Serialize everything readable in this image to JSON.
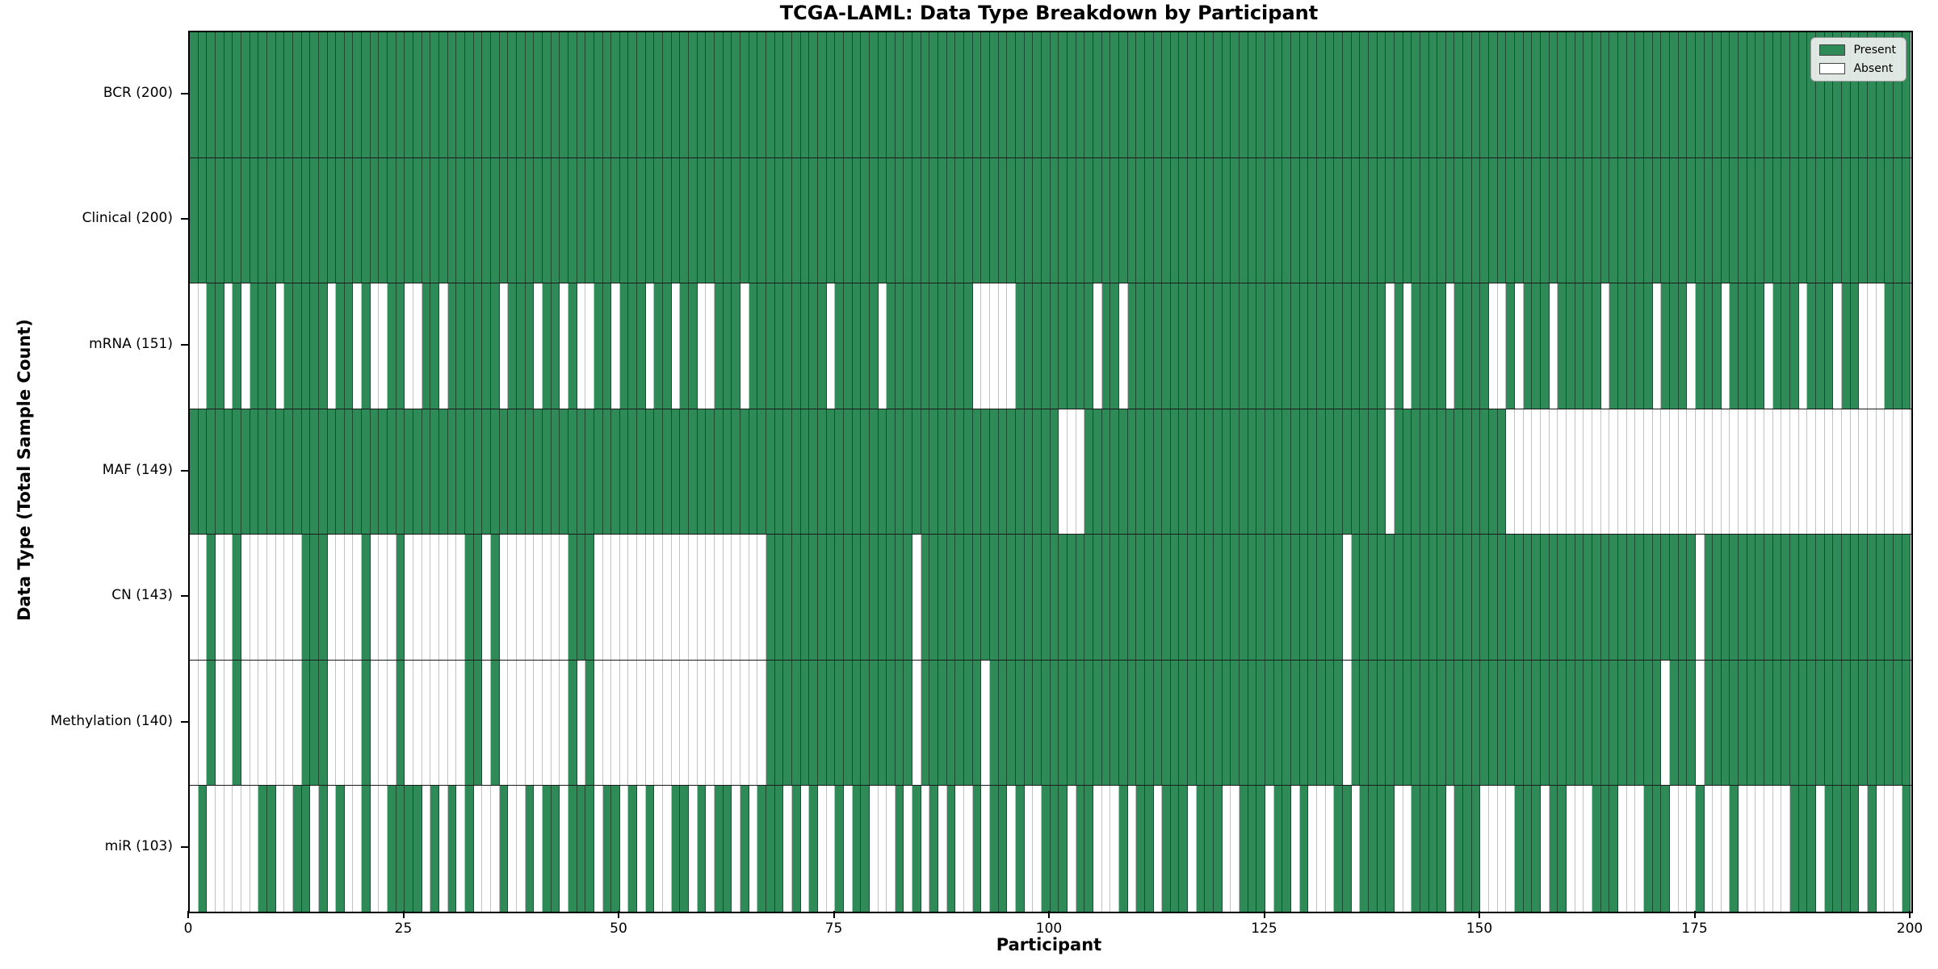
{
  "title": "TCGA-LAML: Data Type Breakdown by Participant",
  "xlabel": "Participant",
  "ylabel": "Data Type (Total Sample Count)",
  "legend": {
    "present_label": "Present",
    "absent_label": "Absent",
    "position": "upper right"
  },
  "colors": {
    "present": "#2e8b57",
    "absent": "#ffffff",
    "row_divider": "#1a1a1a",
    "spine": "#000000",
    "legend_bg": "#f0f0f0"
  },
  "x_ticks": [
    0,
    25,
    50,
    75,
    100,
    125,
    150,
    175,
    200
  ],
  "chart_data": {
    "type": "heatmap",
    "x_axis": {
      "label": "Participant",
      "range": [
        0,
        200
      ],
      "tick_step": 25
    },
    "y_axis": {
      "label": "Data Type (Total Sample Count)"
    },
    "legend_entries": [
      "Present",
      "Absent"
    ],
    "legend_position": "upper right",
    "grid": "cell-borders",
    "rows": [
      {
        "label": "BCR (200)",
        "name": "BCR",
        "total": 200,
        "presence": [
          "1111111111",
          "1111111111",
          "1111111111",
          "1111111111",
          "1111111111",
          "1111111111",
          "1111111111",
          "1111111111",
          "1111111111",
          "1111111111",
          "1111111111",
          "1111111111",
          "1111111111",
          "1111111111",
          "1111111111",
          "1111111111",
          "1111111111",
          "1111111111",
          "1111111111",
          "1111111111"
        ]
      },
      {
        "label": "Clinical (200)",
        "name": "Clinical",
        "total": 200,
        "presence": [
          "1111111111",
          "1111111111",
          "1111111111",
          "1111111111",
          "1111111111",
          "1111111111",
          "1111111111",
          "1111111111",
          "1111111111",
          "1111111111",
          "1111111111",
          "1111111111",
          "1111111111",
          "1111111111",
          "1111111111",
          "1111111111",
          "1111111111",
          "1111111111",
          "1111111111",
          "1111111111"
        ]
      },
      {
        "label": "mRNA (151)",
        "name": "mRNA",
        "total": 151,
        "presence": [
          "0011010111",
          "0111110110",
          "1001100110",
          "1111110111",
          "0110100110",
          "1110110110",
          "0111011111",
          "1111011111",
          "0111111111",
          "1000001111",
          "1111101101",
          "1111111111",
          "1111111111",
          "1111111110",
          "1011110111",
          "1001011101",
          "1111011111",
          "0111011101",
          "1110111011",
          "1011000111"
        ]
      },
      {
        "label": "MAF (149)",
        "name": "MAF",
        "total": 149,
        "presence": [
          "1111111111",
          "1111111111",
          "1111111111",
          "1111111111",
          "1111111111",
          "1111111111",
          "1111111111",
          "1111111111",
          "1111111111",
          "1111111111",
          "1000111111",
          "1111111111",
          "1111111111",
          "1111111110",
          "1111111111",
          "1110000000",
          "0000000000",
          "0000000000",
          "0000000000",
          "0000000000"
        ]
      },
      {
        "label": "CN (143)",
        "name": "CN",
        "total": 143,
        "presence": [
          "0010010000",
          "0001110000",
          "1000100000",
          "0011010000",
          "0000111000",
          "0000000000",
          "0000000111",
          "1111111111",
          "1111011111",
          "1111111111",
          "1111111111",
          "1111111111",
          "1111111111",
          "1111011111",
          "1111111111",
          "1111111111",
          "1111111111",
          "1111101111",
          "1111111111",
          "1111111111"
        ]
      },
      {
        "label": "Methylation (140)",
        "name": "Methylation",
        "total": 140,
        "presence": [
          "0010010000",
          "0001110000",
          "1000100000",
          "0011010000",
          "0000101000",
          "0000000000",
          "0000000111",
          "1111111111",
          "1111011111",
          "1101111111",
          "1111111111",
          "1111111111",
          "1111111111",
          "1111011111",
          "1111111111",
          "1111111111",
          "1111111111",
          "1011101111",
          "1111111111",
          "1111111111"
        ]
      },
      {
        "label": "miR (103)",
        "name": "miR",
        "total": 103,
        "presence": [
          "0100000011",
          "0011010100",
          "1001111010",
          "1010001001",
          "0110111011",
          "0101001101",
          "0110101110",
          "1010010110",
          "0010101010",
          "0101101001",
          "1101100010",
          "1101110111",
          "0011101101",
          "0001101111",
          "0011110111",
          "0000111011",
          "0001110001",
          "1100010001",
          "0000001110",
          "1111010001"
        ]
      }
    ]
  }
}
